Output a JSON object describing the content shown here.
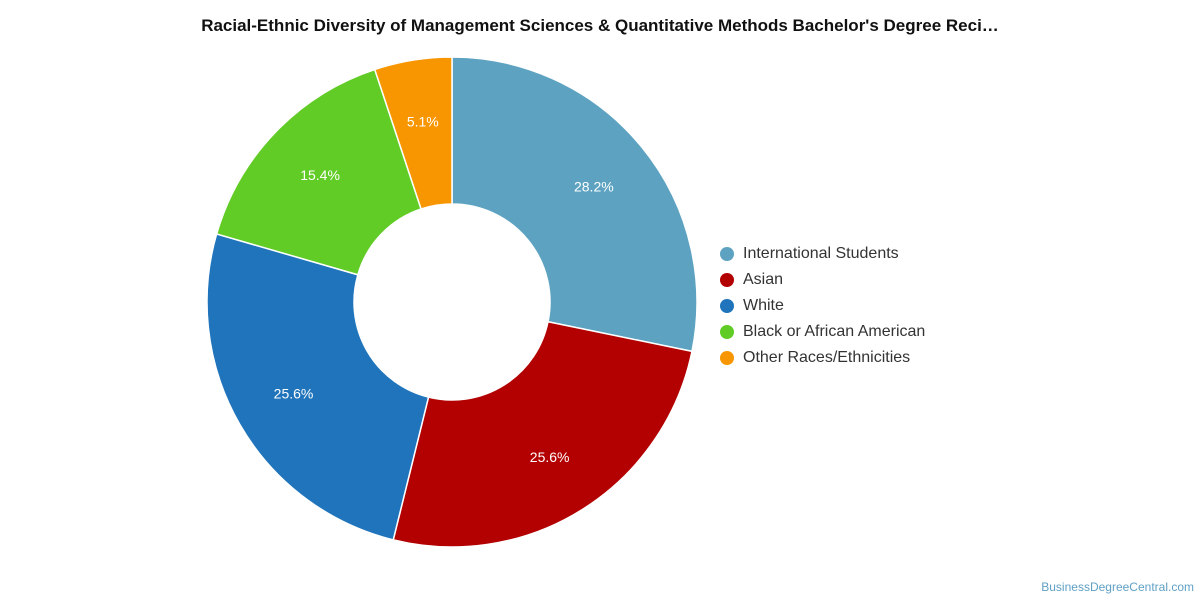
{
  "chart_data": {
    "type": "pie",
    "subtype": "donut",
    "title": "Racial-Ethnic Diversity of Management Sciences & Quantitative Methods Bachelor's Degree Reci…",
    "legend_position": "right",
    "slices": [
      {
        "label": "International Students",
        "value": 28.2,
        "display": "28.2%",
        "color": "#5da3c1"
      },
      {
        "label": "Asian",
        "value": 25.6,
        "display": "25.6%",
        "color": "#b30000"
      },
      {
        "label": "White",
        "value": 25.6,
        "display": "25.6%",
        "color": "#1f74bb"
      },
      {
        "label": "Black or African American",
        "value": 15.4,
        "display": "15.4%",
        "color": "#62cc27"
      },
      {
        "label": "Other Races/Ethnicities",
        "value": 5.1,
        "display": "5.1%",
        "color": "#f79600"
      }
    ]
  },
  "footer": {
    "source": "BusinessDegreeCentral.com"
  }
}
